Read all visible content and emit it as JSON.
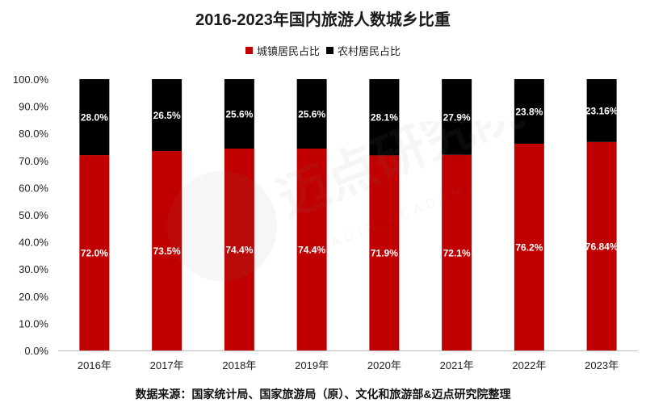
{
  "chart_data": {
    "type": "bar",
    "stacked": true,
    "title": "2016-2023年国内旅游人数城乡比重",
    "categories": [
      "2016年",
      "2017年",
      "2018年",
      "2019年",
      "2020年",
      "2021年",
      "2022年",
      "2023年"
    ],
    "series": [
      {
        "name": "城镇居民占比",
        "color": "#c00000",
        "values": [
          72.0,
          73.5,
          74.4,
          74.4,
          71.9,
          72.1,
          76.2,
          76.84
        ],
        "labels": [
          "72.0%",
          "73.5%",
          "74.4%",
          "74.4%",
          "71.9%",
          "72.1%",
          "76.2%",
          "76.84%"
        ]
      },
      {
        "name": "农村居民占比",
        "color": "#000000",
        "values": [
          28.0,
          26.5,
          25.6,
          25.6,
          28.1,
          27.9,
          23.8,
          23.16
        ],
        "labels": [
          "28.0%",
          "26.5%",
          "25.6%",
          "25.6%",
          "28.1%",
          "27.9%",
          "23.8%",
          "23.16%"
        ]
      }
    ],
    "ylim": [
      0,
      100
    ],
    "yticks": [
      "0.0%",
      "10.0%",
      "20.0%",
      "30.0%",
      "40.0%",
      "50.0%",
      "60.0%",
      "70.0%",
      "80.0%",
      "90.0%",
      "100.0%"
    ],
    "legend_position": "top-center",
    "grid": false
  },
  "source_note": "数据来源：国家统计局、国家旅游局（原）、文化和旅游部&迈点研究院整理",
  "watermark": {
    "text": "迈点研究院",
    "subtext": "MEADIN ACADEMY"
  }
}
